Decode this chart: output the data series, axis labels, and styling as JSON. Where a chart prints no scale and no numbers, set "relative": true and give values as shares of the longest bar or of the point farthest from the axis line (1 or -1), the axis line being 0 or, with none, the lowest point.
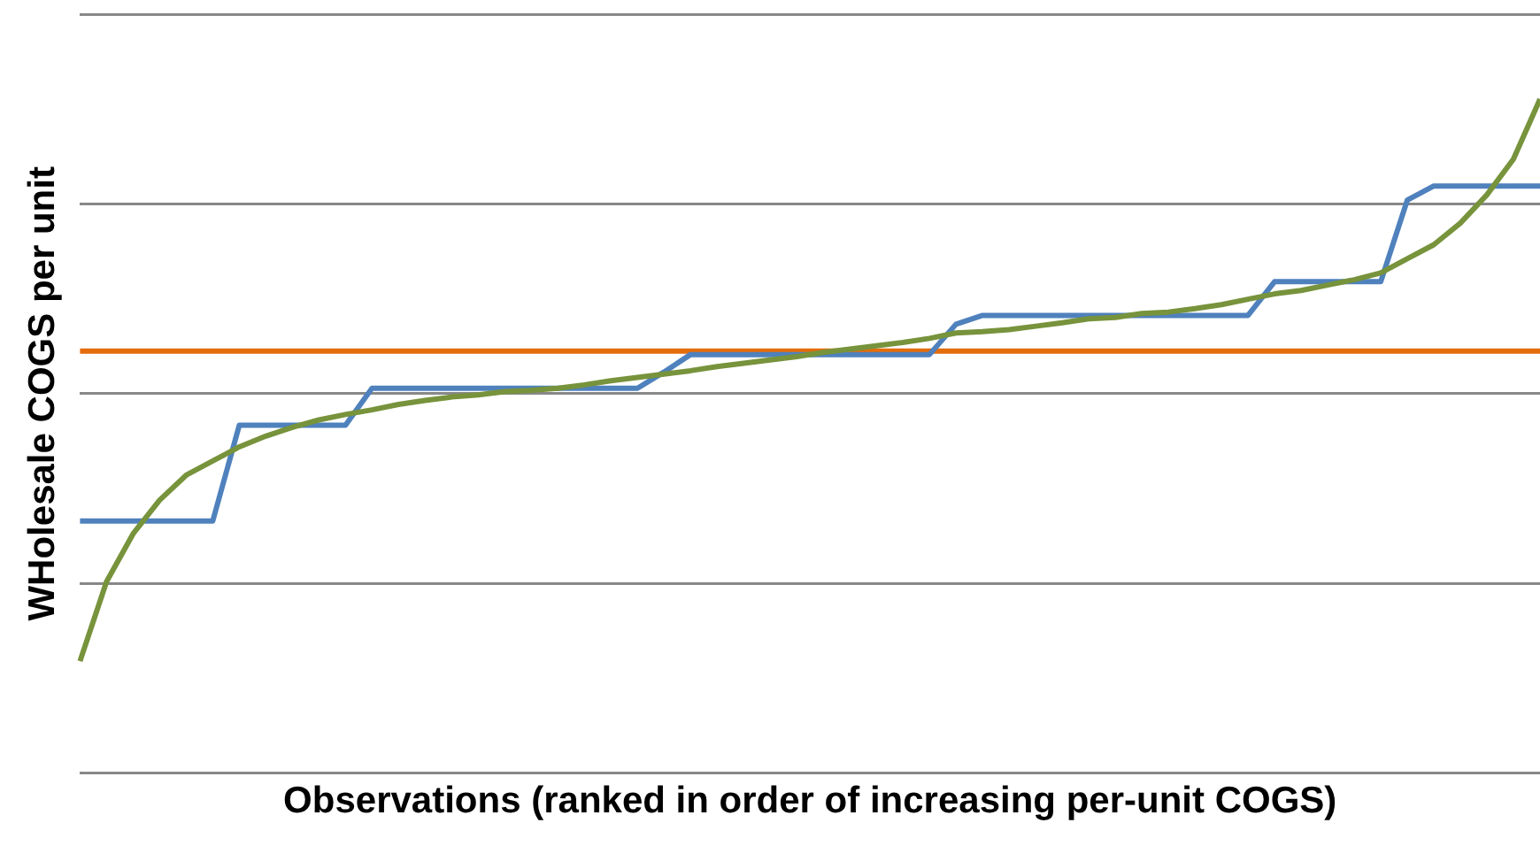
{
  "chart_data": {
    "type": "line",
    "relative": true,
    "xlabel": "Observations (ranked in order of increasing per-unit COGS)",
    "ylabel": "WHolesale COGS per unit",
    "grid": "y",
    "legend": false,
    "marker": "none",
    "line_style": "solid",
    "categories": [
      null,
      null,
      null,
      null,
      null,
      null,
      null,
      null,
      null,
      null,
      null,
      null,
      null,
      null,
      null,
      null,
      null,
      null,
      null,
      null,
      null,
      null,
      null,
      null,
      null,
      null,
      null,
      null,
      null,
      null,
      null,
      null,
      null,
      null,
      null,
      null,
      null,
      null,
      null,
      null,
      null,
      null,
      null,
      null,
      null,
      null,
      null,
      null,
      null,
      null,
      null,
      null,
      null,
      null,
      null,
      null
    ],
    "series": [
      {
        "color": "#77933c",
        "values": [
          0.166,
          0.284,
          0.355,
          0.405,
          0.442,
          0.463,
          0.484,
          0.5,
          0.513,
          0.524,
          0.532,
          0.539,
          0.547,
          0.553,
          0.558,
          0.561,
          0.566,
          0.568,
          0.571,
          0.576,
          0.582,
          0.587,
          0.592,
          0.597,
          0.603,
          0.608,
          0.613,
          0.618,
          0.624,
          0.629,
          0.634,
          0.639,
          0.645,
          0.653,
          0.655,
          0.658,
          0.663,
          0.668,
          0.674,
          0.676,
          0.682,
          0.684,
          0.689,
          0.695,
          0.703,
          0.711,
          0.716,
          0.724,
          0.732,
          0.742,
          0.763,
          0.784,
          0.816,
          0.858,
          0.911,
          1
        ]
      },
      {
        "color": "#4f81bd",
        "values": [
          0.374,
          0.374,
          0.374,
          0.374,
          0.374,
          0.374,
          0.516,
          0.516,
          0.516,
          0.516,
          0.516,
          0.571,
          0.571,
          0.571,
          0.571,
          0.571,
          0.571,
          0.571,
          0.571,
          0.571,
          0.571,
          0.571,
          0.595,
          0.621,
          0.621,
          0.621,
          0.621,
          0.621,
          0.621,
          0.621,
          0.621,
          0.621,
          0.621,
          0.666,
          0.679,
          0.679,
          0.679,
          0.679,
          0.679,
          0.679,
          0.679,
          0.679,
          0.679,
          0.679,
          0.679,
          0.729,
          0.729,
          0.729,
          0.729,
          0.729,
          0.85,
          0.871,
          0.871,
          0.871,
          0.871,
          0.871
        ]
      },
      {
        "color": "#e46c0a",
        "values": [
          0.626,
          0.626,
          0.626,
          0.626,
          0.626,
          0.626,
          0.626,
          0.626,
          0.626,
          0.626,
          0.626,
          0.626,
          0.626,
          0.626,
          0.626,
          0.626,
          0.626,
          0.626,
          0.626,
          0.626,
          0.626,
          0.626,
          0.626,
          0.626,
          0.626,
          0.626,
          0.626,
          0.626,
          0.626,
          0.626,
          0.626,
          0.626,
          0.626,
          0.626,
          0.626,
          0.626,
          0.626,
          0.626,
          0.626,
          0.626,
          0.626,
          0.626,
          0.626,
          0.626,
          0.626,
          0.626,
          0.626,
          0.626,
          0.626,
          0.626,
          0.626,
          0.626,
          0.626,
          0.626,
          0.626,
          0.626
        ]
      }
    ]
  }
}
